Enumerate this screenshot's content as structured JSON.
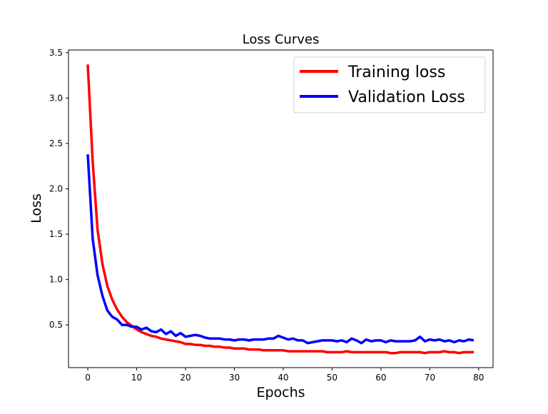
{
  "chart_data": {
    "type": "line",
    "title": "Loss Curves",
    "xlabel": "Epochs",
    "ylabel": "Loss",
    "xlim": [
      -3.95,
      82.95
    ],
    "ylim": [
      0.03,
      3.53
    ],
    "xticks": [
      0,
      10,
      20,
      30,
      40,
      50,
      60,
      70,
      80
    ],
    "yticks": [
      0.5,
      1.0,
      1.5,
      2.0,
      2.5,
      3.0,
      3.5
    ],
    "xtick_labels": [
      "0",
      "10",
      "20",
      "30",
      "40",
      "50",
      "60",
      "70",
      "80"
    ],
    "ytick_labels": [
      "0.5",
      "1.0",
      "1.5",
      "2.0",
      "2.5",
      "3.0",
      "3.5"
    ],
    "grid": false,
    "legend_placement": "upper-right",
    "series": [
      {
        "name": "Training loss",
        "color": "#ff0000",
        "values": [
          3.37,
          2.3,
          1.55,
          1.17,
          0.93,
          0.78,
          0.67,
          0.59,
          0.53,
          0.49,
          0.45,
          0.42,
          0.4,
          0.38,
          0.37,
          0.35,
          0.34,
          0.33,
          0.32,
          0.31,
          0.29,
          0.29,
          0.28,
          0.28,
          0.27,
          0.27,
          0.26,
          0.26,
          0.25,
          0.25,
          0.24,
          0.24,
          0.24,
          0.23,
          0.23,
          0.23,
          0.22,
          0.22,
          0.22,
          0.22,
          0.22,
          0.21,
          0.21,
          0.21,
          0.21,
          0.21,
          0.21,
          0.21,
          0.21,
          0.2,
          0.2,
          0.2,
          0.2,
          0.21,
          0.2,
          0.2,
          0.2,
          0.2,
          0.2,
          0.2,
          0.2,
          0.2,
          0.19,
          0.19,
          0.2,
          0.2,
          0.2,
          0.2,
          0.2,
          0.19,
          0.2,
          0.2,
          0.2,
          0.21,
          0.2,
          0.2,
          0.19,
          0.2,
          0.2,
          0.2
        ]
      },
      {
        "name": "Validation Loss",
        "color": "#0000ff",
        "values": [
          2.38,
          1.45,
          1.05,
          0.82,
          0.66,
          0.59,
          0.56,
          0.5,
          0.5,
          0.48,
          0.48,
          0.45,
          0.47,
          0.43,
          0.42,
          0.45,
          0.4,
          0.43,
          0.38,
          0.41,
          0.37,
          0.38,
          0.39,
          0.38,
          0.36,
          0.35,
          0.35,
          0.35,
          0.34,
          0.34,
          0.33,
          0.34,
          0.34,
          0.33,
          0.34,
          0.34,
          0.34,
          0.35,
          0.35,
          0.38,
          0.36,
          0.34,
          0.35,
          0.33,
          0.33,
          0.3,
          0.31,
          0.32,
          0.33,
          0.33,
          0.33,
          0.32,
          0.33,
          0.31,
          0.35,
          0.33,
          0.3,
          0.34,
          0.32,
          0.33,
          0.33,
          0.31,
          0.33,
          0.32,
          0.32,
          0.32,
          0.32,
          0.33,
          0.37,
          0.32,
          0.34,
          0.33,
          0.34,
          0.32,
          0.33,
          0.31,
          0.33,
          0.32,
          0.34,
          0.33
        ]
      }
    ]
  }
}
